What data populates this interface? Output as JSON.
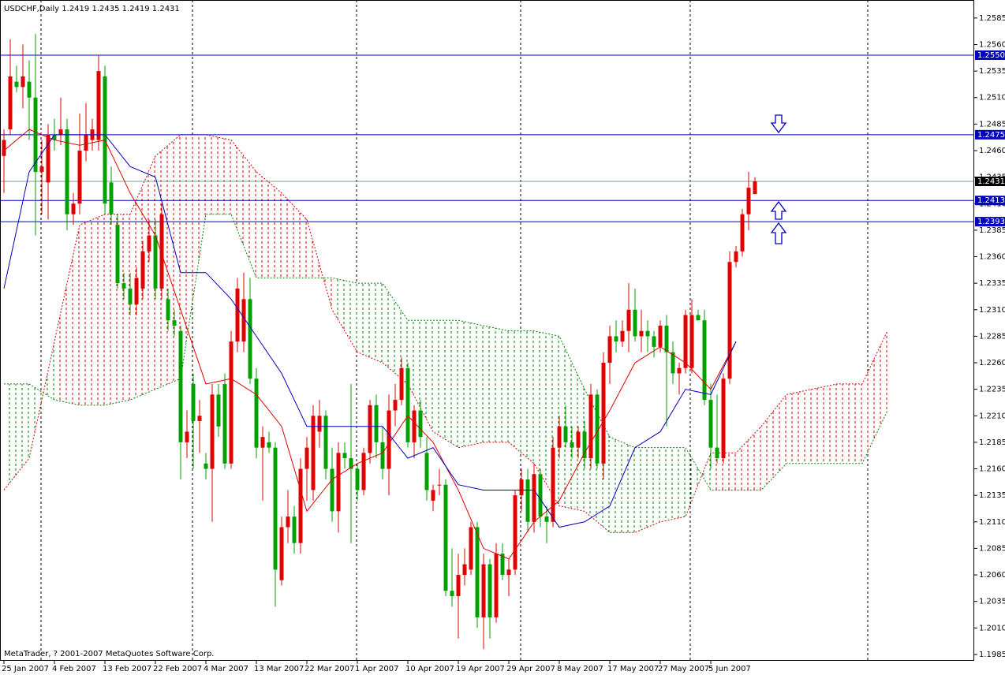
{
  "chart_data": {
    "type": "candlestick",
    "title": "USDCHF,Daily  1.2419 1.2435 1.2419 1.2431",
    "footer": "MetaTrader, ? 2001-2007 MetaQuotes Software Corp.",
    "bull_color": "#e00000",
    "bear_color": "#00a000",
    "ylim": [
      1.1979,
      1.2602
    ],
    "yticks": [
      1.2585,
      {
        "value": 1.256,
        "label": "1.2560"
      },
      1.2535,
      {
        "value": 1.251,
        "label": "1.2510"
      },
      1.2485,
      {
        "value": 1.246,
        "label": "1.2460"
      },
      1.2435,
      {
        "value": 1.241,
        "label": "1.2410"
      },
      1.2385,
      {
        "value": 1.236,
        "label": "1.2360"
      },
      1.2335,
      {
        "value": 1.231,
        "label": "1.2310"
      },
      1.2285,
      {
        "value": 1.226,
        "label": "1.2260"
      },
      1.2235,
      {
        "value": 1.221,
        "label": "1.2210"
      },
      1.2185,
      {
        "value": 1.216,
        "label": "1.2160"
      },
      1.2135,
      {
        "value": 1.211,
        "label": "1.2110"
      },
      1.2085,
      {
        "value": 1.206,
        "label": "1.2060"
      },
      1.2035,
      {
        "value": 1.201,
        "label": "1.2010"
      },
      1.1985
    ],
    "levels": [
      {
        "value": 1.255,
        "label": "1.2550"
      },
      1.2475,
      1.2413,
      1.2393
    ],
    "level_color": "#0000c0",
    "last_price": 1.2431,
    "categories": [
      "25 Jan 2007",
      null,
      null,
      null,
      null,
      null,
      null,
      null,
      "4 Feb 2007",
      null,
      null,
      null,
      null,
      null,
      null,
      null,
      "13 Feb 2007",
      null,
      null,
      null,
      null,
      null,
      null,
      null,
      "22 Feb 2007",
      null,
      null,
      null,
      null,
      null,
      null,
      null,
      "4 Mar 2007",
      null,
      null,
      null,
      null,
      null,
      null,
      null,
      "13 Mar 2007",
      null,
      null,
      null,
      null,
      null,
      null,
      null,
      "22 Mar 2007",
      null,
      null,
      null,
      null,
      null,
      null,
      null,
      "1 Apr 2007",
      null,
      null,
      null,
      null,
      null,
      null,
      null,
      "10 Apr 2007",
      null,
      null,
      null,
      null,
      null,
      null,
      null,
      "19 Apr 2007",
      null,
      null,
      null,
      null,
      null,
      null,
      null,
      "29 Apr 2007",
      null,
      null,
      null,
      null,
      null,
      null,
      null,
      "8 May 2007",
      null,
      null,
      null,
      null,
      null,
      null,
      null,
      "17 May 2007",
      null,
      null,
      null,
      null,
      null,
      null,
      null,
      "27 May 2007",
      null,
      null,
      null,
      null,
      null,
      null,
      null,
      "5 Jun 2007",
      null,
      null,
      null,
      null,
      null,
      null,
      null
    ],
    "ohlc": [
      [
        1.2455,
        1.248,
        1.242,
        1.247
      ],
      [
        1.248,
        1.2565,
        1.2475,
        1.253
      ],
      [
        1.2525,
        1.254,
        1.2515,
        1.252
      ],
      [
        1.252,
        1.256,
        1.25,
        1.253
      ],
      [
        1.2525,
        1.2545,
        1.247,
        1.251
      ],
      [
        1.251,
        1.257,
        1.238,
        1.244
      ],
      [
        1.244,
        1.247,
        1.24,
        1.2445
      ],
      [
        1.243,
        1.2485,
        1.2395,
        1.2475
      ],
      [
        1.2475,
        1.249,
        1.246,
        1.247
      ],
      [
        1.2475,
        1.251,
        1.2465,
        1.248
      ],
      [
        1.248,
        1.249,
        1.2385,
        1.24
      ],
      [
        1.24,
        1.242,
        1.239,
        1.241
      ],
      [
        1.241,
        1.2495,
        1.24,
        1.246
      ],
      [
        1.246,
        1.2505,
        1.245,
        1.2475
      ],
      [
        1.247,
        1.249,
        1.246,
        1.248
      ],
      [
        1.247,
        1.255,
        1.246,
        1.2535
      ],
      [
        1.253,
        1.254,
        1.24,
        1.241
      ],
      [
        1.243,
        1.2445,
        1.239,
        1.24
      ],
      [
        1.239,
        1.24,
        1.233,
        1.2335
      ],
      [
        1.2335,
        1.2345,
        1.232,
        1.233
      ],
      [
        1.233,
        1.2345,
        1.2305,
        1.2315
      ],
      [
        1.2315,
        1.235,
        1.2305,
        1.234
      ],
      [
        1.233,
        1.2375,
        1.232,
        1.2365
      ],
      [
        1.2365,
        1.2395,
        1.2355,
        1.238
      ],
      [
        1.238,
        1.2395,
        1.232,
        1.233
      ],
      [
        1.233,
        1.241,
        1.232,
        1.24
      ],
      [
        1.232,
        1.233,
        1.229,
        1.23
      ],
      [
        1.23,
        1.231,
        1.2285,
        1.2295
      ],
      [
        1.229,
        1.2295,
        1.215,
        1.2185
      ],
      [
        1.2185,
        1.2215,
        1.217,
        1.2195
      ],
      [
        1.224,
        1.225,
        1.216,
        1.2205
      ],
      [
        1.2205,
        1.2225,
        1.2175,
        1.221
      ],
      [
        1.2165,
        1.2175,
        1.215,
        1.216
      ],
      [
        1.216,
        1.224,
        1.211,
        1.223
      ],
      [
        1.223,
        1.224,
        1.219,
        1.22
      ],
      [
        1.224,
        1.225,
        1.216,
        1.2165
      ],
      [
        1.2165,
        1.229,
        1.216,
        1.228
      ],
      [
        1.228,
        1.234,
        1.227,
        1.233
      ],
      [
        1.228,
        1.2345,
        1.227,
        1.232
      ],
      [
        1.232,
        1.234,
        1.224,
        1.2245
      ],
      [
        1.2245,
        1.2255,
        1.217,
        1.218
      ],
      [
        1.218,
        1.22,
        1.213,
        1.219
      ],
      [
        1.2185,
        1.2195,
        1.2175,
        1.218
      ],
      [
        1.218,
        1.2185,
        1.203,
        1.2065
      ],
      [
        1.2055,
        1.2115,
        1.205,
        1.2105
      ],
      [
        1.2105,
        1.214,
        1.209,
        1.2115
      ],
      [
        1.2115,
        1.2125,
        1.208,
        1.209
      ],
      [
        1.209,
        1.217,
        1.208,
        1.216
      ],
      [
        1.216,
        1.219,
        1.213,
        1.218
      ],
      [
        1.214,
        1.222,
        1.213,
        1.221
      ],
      [
        1.2195,
        1.2225,
        1.218,
        1.221
      ],
      [
        1.221,
        1.2215,
        1.215,
        1.216
      ],
      [
        1.216,
        1.218,
        1.211,
        1.212
      ],
      [
        1.212,
        1.2185,
        1.21,
        1.2175
      ],
      [
        1.2175,
        1.2185,
        1.216,
        1.217
      ],
      [
        1.217,
        1.224,
        1.209,
        1.216
      ],
      [
        1.216,
        1.2165,
        1.213,
        1.214
      ],
      [
        1.214,
        1.218,
        1.2135,
        1.2175
      ],
      [
        1.2175,
        1.2225,
        1.2165,
        1.222
      ],
      [
        1.222,
        1.223,
        1.217,
        1.2185
      ],
      [
        1.2185,
        1.22,
        1.215,
        1.216
      ],
      [
        1.216,
        1.223,
        1.2135,
        1.2215
      ],
      [
        1.2215,
        1.224,
        1.22,
        1.2225
      ],
      [
        1.2225,
        1.2265,
        1.222,
        1.2255
      ],
      [
        1.2255,
        1.226,
        1.218,
        1.2185
      ],
      [
        1.2185,
        1.222,
        1.217,
        1.2215
      ],
      [
        1.2215,
        1.2225,
        1.218,
        1.219
      ],
      [
        1.2175,
        1.219,
        1.213,
        1.214
      ],
      [
        1.213,
        1.2145,
        1.212,
        1.214
      ],
      [
        1.2145,
        1.216,
        1.2135,
        1.2145
      ],
      [
        1.2145,
        1.215,
        1.204,
        1.2045
      ],
      [
        1.2045,
        1.2085,
        1.203,
        1.204
      ],
      [
        1.204,
        1.208,
        1.2,
        1.206
      ],
      [
        1.206,
        1.2085,
        1.205,
        1.207
      ],
      [
        1.2065,
        1.211,
        1.206,
        1.2105
      ],
      [
        1.2105,
        1.211,
        1.201,
        1.202
      ],
      [
        1.202,
        1.208,
        1.199,
        1.207
      ],
      [
        1.207,
        1.2075,
        1.2,
        1.202
      ],
      [
        1.202,
        1.209,
        1.2015,
        1.208
      ],
      [
        1.208,
        1.209,
        1.2055,
        1.206
      ],
      [
        1.206,
        1.2075,
        1.204,
        1.2065
      ],
      [
        1.2065,
        1.214,
        1.206,
        1.2135
      ],
      [
        1.2135,
        1.216,
        1.212,
        1.215
      ],
      [
        1.215,
        1.216,
        1.21,
        1.211
      ],
      [
        1.211,
        1.2165,
        1.21,
        1.2155
      ],
      [
        1.2155,
        1.216,
        1.2105,
        1.2115
      ],
      [
        1.2115,
        1.2125,
        1.209,
        1.211
      ],
      [
        1.211,
        1.219,
        1.2105,
        1.218
      ],
      [
        1.218,
        1.221,
        1.217,
        1.22
      ],
      [
        1.22,
        1.222,
        1.218,
        1.2185
      ],
      [
        1.2185,
        1.22,
        1.217,
        1.218
      ],
      [
        1.218,
        1.22,
        1.217,
        1.2195
      ],
      [
        1.2195,
        1.2205,
        1.216,
        1.217
      ],
      [
        1.217,
        1.224,
        1.216,
        1.223
      ],
      [
        1.223,
        1.2235,
        1.216,
        1.2165
      ],
      [
        1.2165,
        1.227,
        1.215,
        1.226
      ],
      [
        1.226,
        1.2295,
        1.224,
        1.2285
      ],
      [
        1.2285,
        1.23,
        1.227,
        1.228
      ],
      [
        1.228,
        1.23,
        1.2275,
        1.229
      ],
      [
        1.229,
        1.2335,
        1.227,
        1.231
      ],
      [
        1.231,
        1.233,
        1.228,
        1.2285
      ],
      [
        1.2285,
        1.231,
        1.227,
        1.229
      ],
      [
        1.229,
        1.23,
        1.227,
        1.2285
      ],
      [
        1.2285,
        1.229,
        1.2265,
        1.2275
      ],
      [
        1.2275,
        1.23,
        1.227,
        1.2295
      ],
      [
        1.2295,
        1.2305,
        1.22,
        1.227
      ],
      [
        1.227,
        1.228,
        1.224,
        1.225
      ],
      [
        1.225,
        1.226,
        1.223,
        1.2255
      ],
      [
        1.2255,
        1.231,
        1.225,
        1.2305
      ],
      [
        1.2255,
        1.232,
        1.225,
        1.2305
      ],
      [
        1.2305,
        1.231,
        1.23,
        1.23
      ],
      [
        1.23,
        1.231,
        1.222,
        1.2225
      ],
      [
        1.2225,
        1.224,
        1.216,
        1.218
      ],
      [
        1.218,
        1.223,
        1.2165,
        1.217
      ],
      [
        1.217,
        1.225,
        1.2165,
        1.2245
      ],
      [
        1.2245,
        1.2365,
        1.224,
        1.2355
      ],
      [
        1.2355,
        1.237,
        1.235,
        1.2365
      ],
      [
        1.2365,
        1.2405,
        1.236,
        1.24
      ],
      [
        1.24,
        1.244,
        1.2385,
        1.2425
      ],
      [
        1.2419,
        1.2435,
        1.2419,
        1.2431
      ]
    ],
    "tenkan": {
      "color": "#e00000",
      "values": [
        1.246,
        1.248,
        1.247,
        1.2465,
        1.247,
        1.242,
        1.238,
        1.231,
        1.224,
        1.2245,
        1.223,
        1.22,
        1.212,
        1.215,
        1.2165,
        1.2175,
        1.221,
        1.2185,
        1.214,
        1.2085,
        1.2075,
        1.211,
        1.213,
        1.2175,
        1.2215,
        1.226,
        1.2275,
        1.226,
        1.2235,
        1.228
      ]
    },
    "kijun": {
      "color": "#0000c0",
      "values": [
        1.233,
        1.244,
        1.2475,
        1.2475,
        1.2475,
        1.2445,
        1.2435,
        1.2345,
        1.2345,
        1.232,
        1.2285,
        1.225,
        1.22,
        1.22,
        1.22,
        1.22,
        1.217,
        1.218,
        1.2145,
        1.214,
        1.214,
        1.214,
        1.2105,
        1.211,
        1.2125,
        1.218,
        1.2195,
        1.2235,
        1.223,
        1.228
      ]
    },
    "span_a": {
      "color": "#008000",
      "values": [
        1.224,
        1.224,
        1.2225,
        1.222,
        1.222,
        1.2225,
        1.2235,
        1.2245,
        1.24,
        1.24,
        1.234,
        1.234,
        1.234,
        1.234,
        1.2335,
        1.2335,
        1.23,
        1.23,
        1.23,
        1.2295,
        1.229,
        1.229,
        1.2285,
        1.2235,
        1.219,
        1.218,
        1.218,
        1.218,
        1.214,
        1.214,
        1.214,
        1.2165,
        1.2165,
        1.2165,
        1.2165,
        1.2215
      ]
    },
    "span_b": {
      "color": "#d00000",
      "values": [
        1.214,
        1.217,
        1.228,
        1.239,
        1.24,
        1.24,
        1.2455,
        1.2475,
        1.2475,
        1.247,
        1.244,
        1.242,
        1.2395,
        1.231,
        1.227,
        1.226,
        1.224,
        1.2195,
        1.218,
        1.2185,
        1.2185,
        1.2165,
        1.2125,
        1.212,
        1.21,
        1.21,
        1.211,
        1.2115,
        1.2175,
        1.2175,
        1.22,
        1.223,
        1.2235,
        1.224,
        1.224,
        1.229
      ]
    }
  }
}
